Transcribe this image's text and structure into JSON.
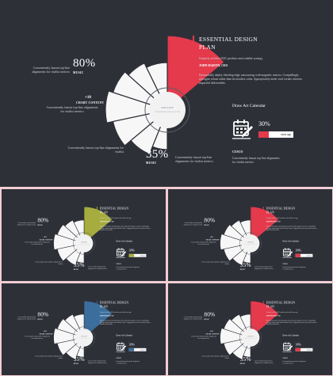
{
  "slides": [
    {
      "accent": "#e43a4c"
    },
    {
      "accent": "#a6ac3e"
    },
    {
      "accent": "#e43a4c"
    },
    {
      "accent": "#3b6e9c"
    },
    {
      "accent": "#e43a4c"
    }
  ],
  "content": {
    "title_line1": "ESSENTIAL DESIGN",
    "title_line2": "PLAN",
    "subtitle": "Uniquely architect B2C products and scalable synergy.",
    "author": "JOHN MARTIN, CEO",
    "paragraph": "Dynamically deploy bleeding-edge outsourcing with magnetic metrics. Compellingly synergize robust rather than frictionless value. Appropriately mesh viral vortals whereas impactful deliverables.",
    "pct_top": "80%",
    "top_label": "MUSIC",
    "top_text": "Conveniently fanout top-line alignments for vitalist metrics",
    "plus_value": "+10",
    "plus_label": "CHART CONTENT",
    "plus_text": "Conveniently fanout top-line alignments for vitalist metrics",
    "left_bottom_text": "Conveniently fanout top-line alignments for vitalist",
    "pct_bottom": "35%",
    "bottom_label": "MUSIC",
    "bottom_text": "Conveniently fanout top-line alignments for vitalist metrics",
    "follow": "FOLLOW",
    "follow_sub": "Conveniently fanout top-line",
    "calendar_title": "Draw Art Calendar",
    "calendar_pct": "30%",
    "calendar_progress": 0.3,
    "bar_label": "www.ugs",
    "center_label": "CUSCO",
    "center_text": "Conveniently fanout top-line alignments for vitalist metrics"
  }
}
